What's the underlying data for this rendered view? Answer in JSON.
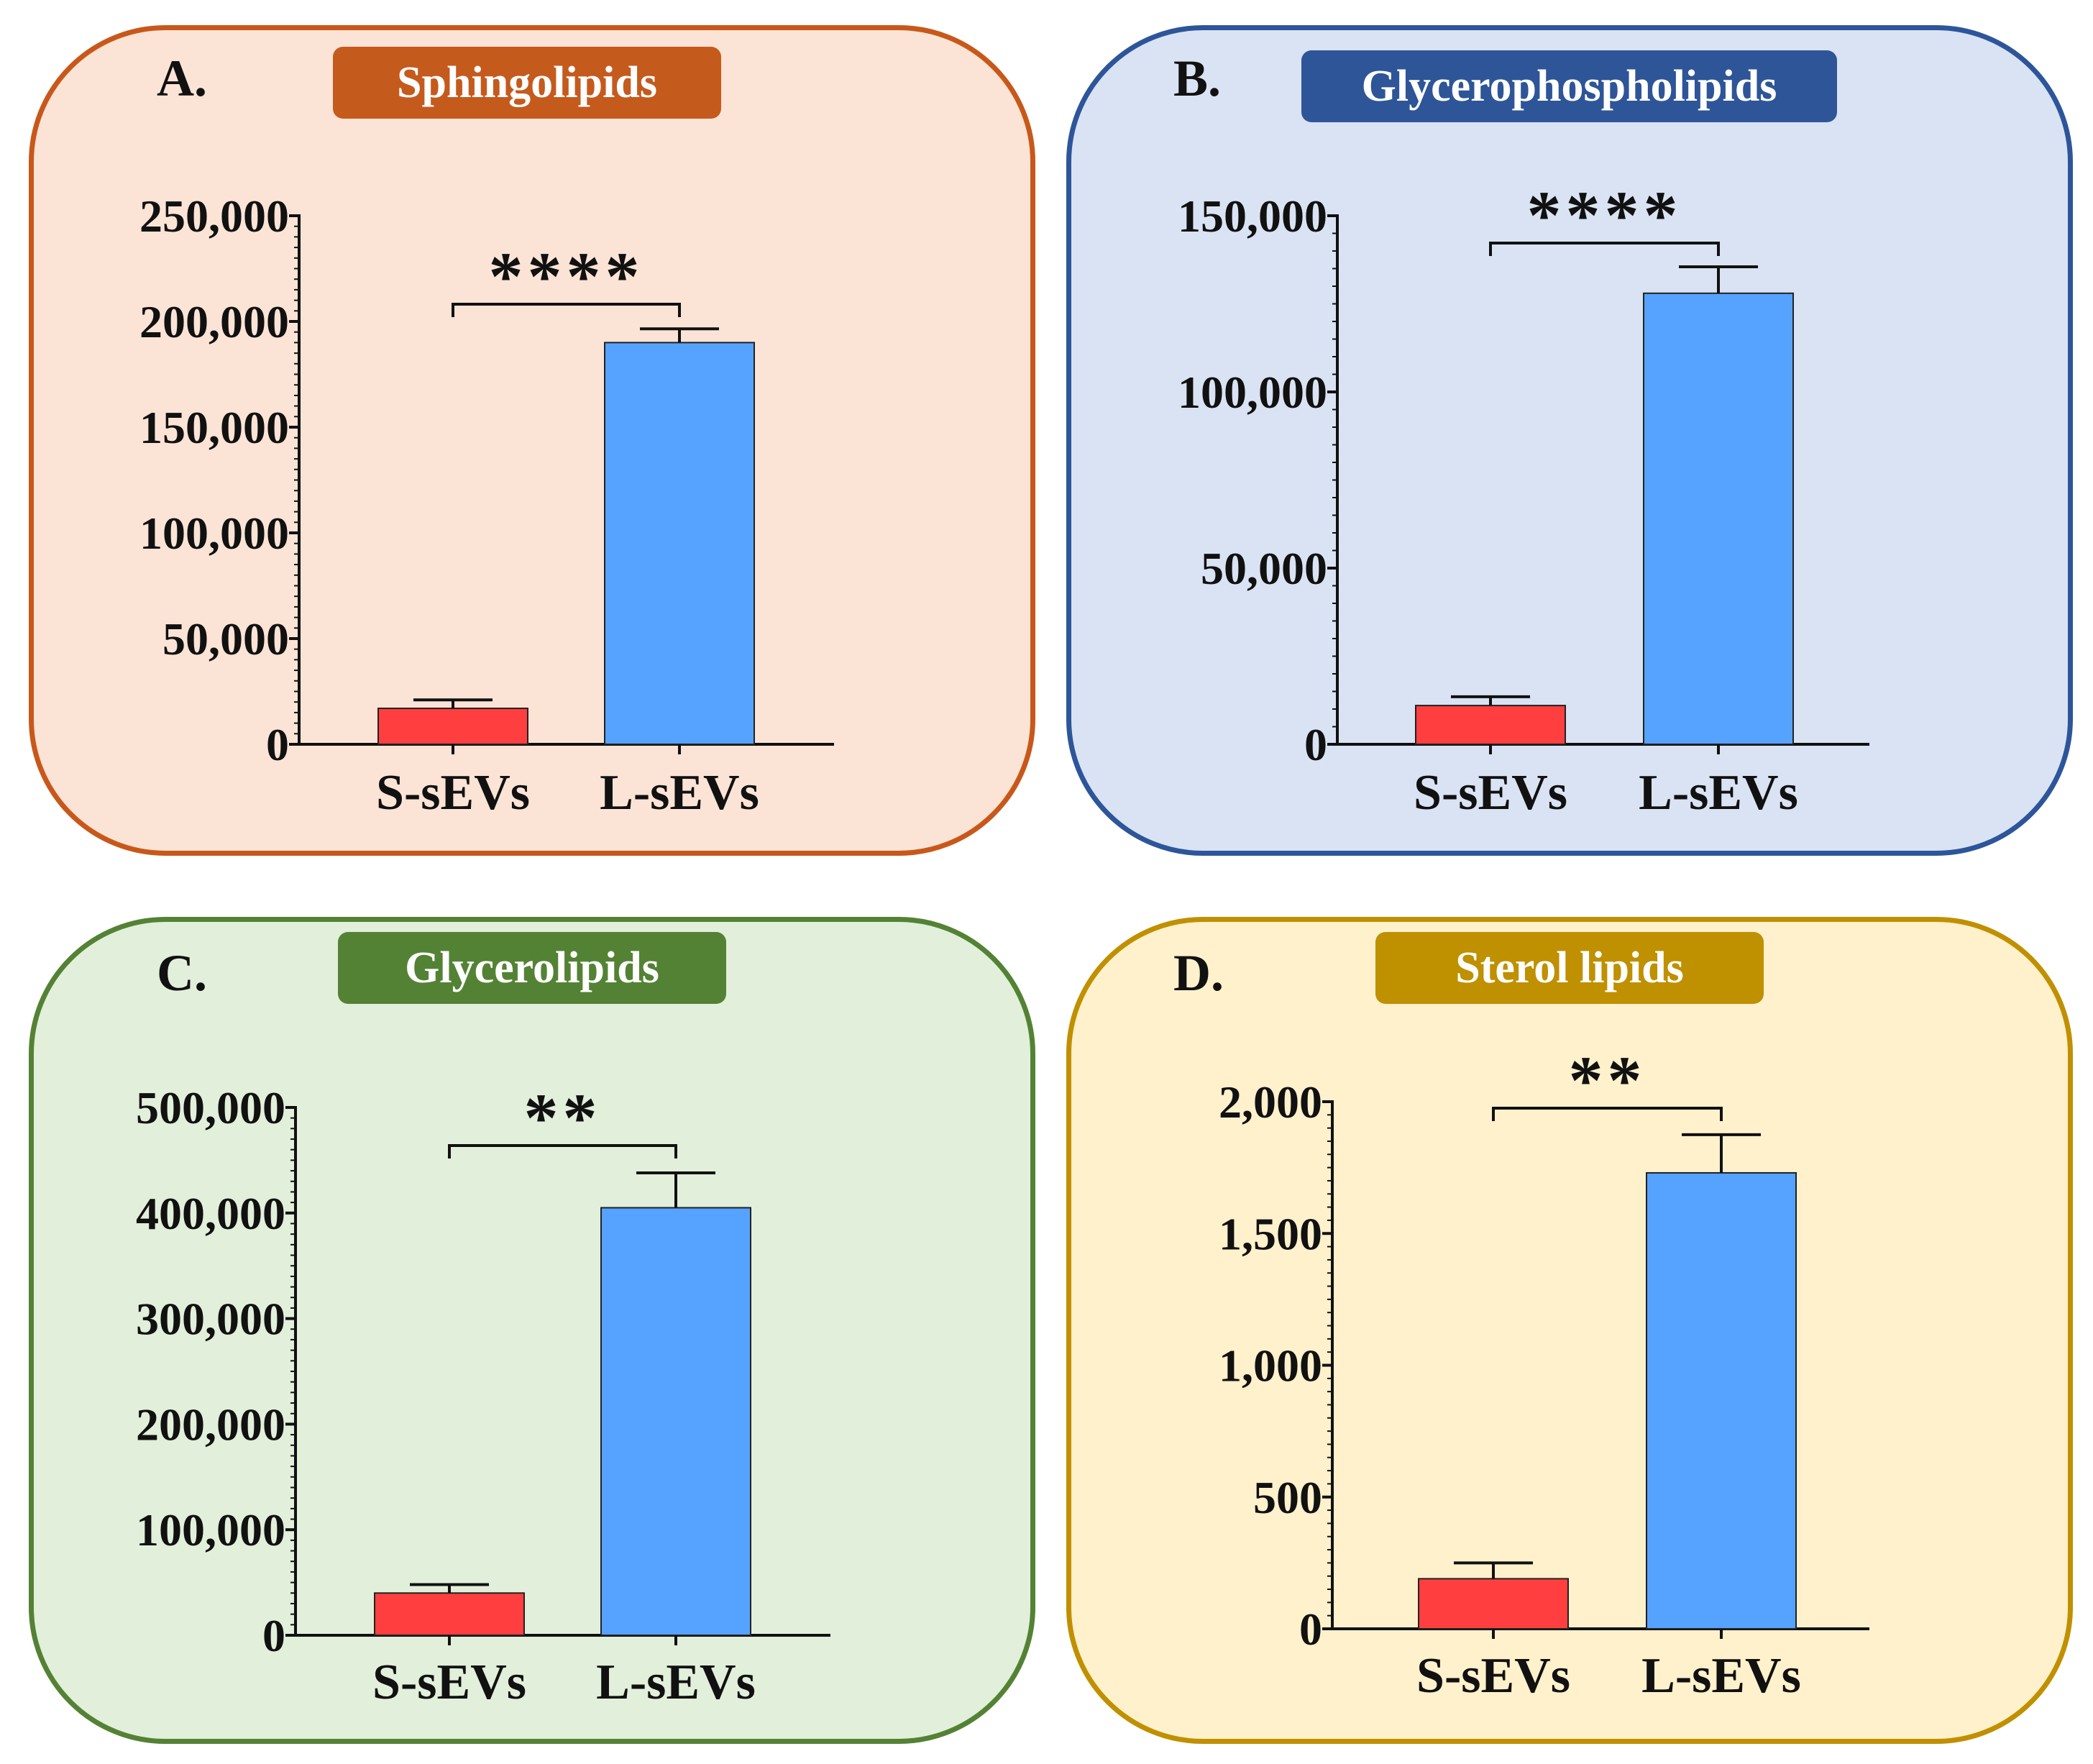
{
  "figure": {
    "panels": [
      {
        "letter": "A.",
        "title": "Sphingolipids",
        "colors": {
          "border": "#c8581a",
          "fill": "#fbe4d6",
          "badge": "#c55a1d"
        }
      },
      {
        "letter": "B.",
        "title": "Glycerophospholipids",
        "colors": {
          "border": "#2d559a",
          "fill": "#dae3f3",
          "badge": "#2e5597"
        }
      },
      {
        "letter": "C.",
        "title": "Glycerolipids",
        "colors": {
          "border": "#548235",
          "fill": "#e2efda",
          "badge": "#548235"
        }
      },
      {
        "letter": "D.",
        "title": "Sterol lipids",
        "colors": {
          "border": "#c09000",
          "fill": "#fff1cc",
          "badge": "#bf9000"
        }
      }
    ]
  },
  "chart_data": [
    {
      "type": "bar",
      "title": "Sphingolipids",
      "categories": [
        "S-sEVs",
        "L-sEVs"
      ],
      "values": [
        17000,
        190000
      ],
      "errors": [
        4000,
        6500
      ],
      "bar_colors": [
        "#ff3f3f",
        "#55a2ff"
      ],
      "ylim": [
        0,
        250000
      ],
      "yticks": [
        0,
        50000,
        100000,
        150000,
        200000,
        250000
      ],
      "ytick_labels": [
        "0",
        "50,000",
        "100,000",
        "150,000",
        "200,000",
        "250,000"
      ],
      "significance": "****",
      "xlabel": "",
      "ylabel": ""
    },
    {
      "type": "bar",
      "title": "Glycerophospholipids",
      "categories": [
        "S-sEVs",
        "L-sEVs"
      ],
      "values": [
        11000,
        128000
      ],
      "errors": [
        2500,
        7500
      ],
      "bar_colors": [
        "#ff3f3f",
        "#55a2ff"
      ],
      "ylim": [
        0,
        150000
      ],
      "yticks": [
        0,
        50000,
        100000,
        150000
      ],
      "ytick_labels": [
        "0",
        "50,000",
        "100,000",
        "150,000"
      ],
      "significance": "****",
      "xlabel": "",
      "ylabel": ""
    },
    {
      "type": "bar",
      "title": "Glycerolipids",
      "categories": [
        "S-sEVs",
        "L-sEVs"
      ],
      "values": [
        40000,
        405000
      ],
      "errors": [
        8000,
        33000
      ],
      "bar_colors": [
        "#ff3f3f",
        "#55a2ff"
      ],
      "ylim": [
        0,
        500000
      ],
      "yticks": [
        0,
        100000,
        200000,
        300000,
        400000,
        500000
      ],
      "ytick_labels": [
        "0",
        "100,000",
        "200,000",
        "300,000",
        "400,000",
        "500,000"
      ],
      "significance": "**",
      "xlabel": "",
      "ylabel": ""
    },
    {
      "type": "bar",
      "title": "Sterol lipids",
      "categories": [
        "S-sEVs",
        "L-sEVs"
      ],
      "values": [
        190,
        1730
      ],
      "errors": [
        60,
        145
      ],
      "bar_colors": [
        "#ff3f3f",
        "#55a2ff"
      ],
      "ylim": [
        0,
        2000
      ],
      "yticks": [
        0,
        500,
        1000,
        1500,
        2000
      ],
      "ytick_labels": [
        "0",
        "500",
        "1,000",
        "1,500",
        "2,000"
      ],
      "significance": "**",
      "xlabel": "",
      "ylabel": ""
    }
  ]
}
